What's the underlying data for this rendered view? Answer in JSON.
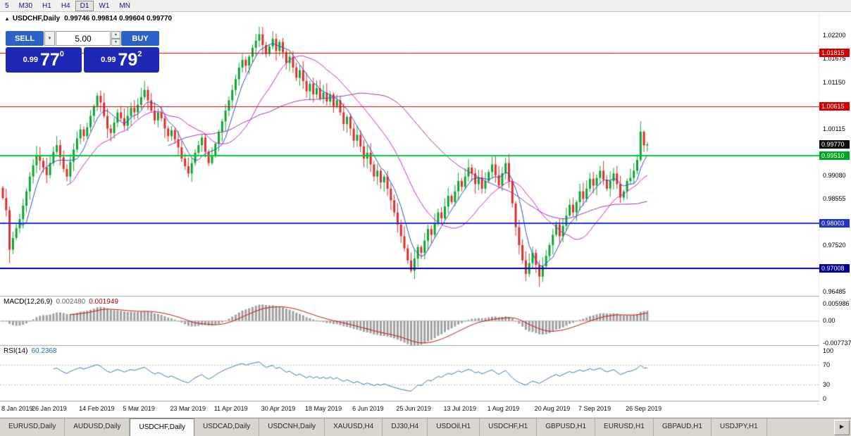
{
  "toolbar": {
    "periods": [
      {
        "label": "5",
        "active": false
      },
      {
        "label": "M30",
        "active": false
      },
      {
        "label": "H1",
        "active": false
      },
      {
        "label": "H4",
        "active": false
      },
      {
        "label": "D1",
        "active": true
      },
      {
        "label": "W1",
        "active": false
      },
      {
        "label": "MN",
        "active": false
      }
    ]
  },
  "chart_header": {
    "icon": "▲",
    "symbol": "USDCHF,Daily",
    "ohlc_text": "0.99746 0.99814 0.99604 0.99770"
  },
  "one_click": {
    "sell_label": "SELL",
    "buy_label": "BUY",
    "volume": "5.00",
    "dropdown_icon": "▼",
    "spinner_up_icon": "▲",
    "spinner_down_icon": "▼",
    "sell_price": {
      "small": "0.99",
      "big": "77",
      "sup": "0"
    },
    "buy_price": {
      "small": "0.99",
      "big": "79",
      "sup": "2"
    }
  },
  "price_axis": {
    "plain_labels": [
      {
        "text": "1.02200",
        "price": 1.022
      },
      {
        "text": "1.01675",
        "price": 1.01675
      },
      {
        "text": "1.01150",
        "price": 1.0115
      },
      {
        "text": "1.00115",
        "price": 1.00115
      },
      {
        "text": "0.99080",
        "price": 0.9908
      },
      {
        "text": "0.98555",
        "price": 0.98555
      },
      {
        "text": "0.97520",
        "price": 0.9752
      },
      {
        "text": "0.96485",
        "price": 0.96485
      }
    ],
    "tags": [
      {
        "text": "1.01815",
        "price": 1.01815,
        "bg": "#d40000"
      },
      {
        "text": "1.00615",
        "price": 1.00615,
        "bg": "#d40000"
      },
      {
        "text": "0.99770",
        "price": 0.9977,
        "bg": "#111111"
      },
      {
        "text": "0.99510",
        "price": 0.9951,
        "bg": "#00a81e"
      },
      {
        "text": "0.98003",
        "price": 0.98003,
        "bg": "#2233cc"
      },
      {
        "text": "0.97008",
        "price": 0.97008,
        "bg": "#0000a0"
      }
    ]
  },
  "macd_panel": {
    "name": "MACD(12,26,9)",
    "main_value": "0.002480",
    "signal_value": "0.001949",
    "axis_labels": [
      {
        "text": "0.005986",
        "value": 0.005986
      },
      {
        "text": "0.00",
        "value": 0
      },
      {
        "text": "-0.007737",
        "value": -0.007737
      }
    ]
  },
  "rsi_panel": {
    "name": "RSI(14)",
    "value": "60.2368",
    "axis_labels": [
      {
        "text": "100",
        "value": 100
      },
      {
        "text": "70",
        "value": 70
      },
      {
        "text": "30",
        "value": 30
      },
      {
        "text": "0",
        "value": 0
      }
    ],
    "level_lines": [
      70,
      30
    ]
  },
  "date_axis": [
    {
      "text": "8 Jan 2019",
      "index": 1
    },
    {
      "text": "26 Jan 2019",
      "index": 14
    },
    {
      "text": "14 Feb 2019",
      "index": 28
    },
    {
      "text": "5 Mar 2019",
      "index": 41
    },
    {
      "text": "23 Mar 2019",
      "index": 55
    },
    {
      "text": "11 Apr 2019",
      "index": 68
    },
    {
      "text": "30 Apr 2019",
      "index": 82
    },
    {
      "text": "18 May 2019",
      "index": 95
    },
    {
      "text": "6 Jun 2019",
      "index": 109
    },
    {
      "text": "25 Jun 2019",
      "index": 122
    },
    {
      "text": "13 Jul 2019",
      "index": 136
    },
    {
      "text": "1 Aug 2019",
      "index": 149
    },
    {
      "text": "20 Aug 2019",
      "index": 163
    },
    {
      "text": "7 Sep 2019",
      "index": 176
    },
    {
      "text": "26 Sep 2019",
      "index": 190
    }
  ],
  "tabs": {
    "items": [
      {
        "label": "EURUSD,Daily"
      },
      {
        "label": "AUDUSD,Daily"
      },
      {
        "label": "USDCHF,Daily"
      },
      {
        "label": "USDCAD,Daily"
      },
      {
        "label": "USDCNH,Daily"
      },
      {
        "label": "XAUUSD,H4"
      },
      {
        "label": "DJ30,H4"
      },
      {
        "label": "USDOil,H1"
      },
      {
        "label": "USDCHF,H1"
      },
      {
        "label": "GBPUSD,H1"
      },
      {
        "label": "EURUSD,H1"
      },
      {
        "label": "GBPAUD,H1"
      },
      {
        "label": "USDJPY,H1"
      }
    ],
    "active_index": 2,
    "scroll_button": "▶"
  },
  "chart_data": {
    "type": "candlestick",
    "symbol": "USDCHF",
    "timeframe": "Daily",
    "current_bar": {
      "open": 0.99746,
      "high": 0.99814,
      "low": 0.99604,
      "close": 0.9977
    },
    "bid": 0.9977,
    "ask": 0.99792,
    "visible_price_range": [
      0.96485,
      1.022
    ],
    "levels": [
      {
        "price": 1.01815,
        "color": "#d40000",
        "width": 1
      },
      {
        "price": 1.00615,
        "color": "#d40000",
        "width": 1
      },
      {
        "price": 0.9951,
        "color": "#00c832",
        "width": 2
      },
      {
        "price": 0.98003,
        "color": "#2233cc",
        "width": 2
      },
      {
        "price": 0.97008,
        "color": "#0000a0",
        "width": 2
      }
    ],
    "first_open": 0.988,
    "closes": [
      0.9857,
      0.983,
      0.9742,
      0.9768,
      0.979,
      0.981,
      0.984,
      0.9872,
      0.9905,
      0.993,
      0.9952,
      0.994,
      0.9925,
      0.9908,
      0.9935,
      0.996,
      0.9975,
      0.9948,
      0.9922,
      0.9905,
      0.9938,
      0.9965,
      0.999,
      1.001,
      0.9995,
      1.0015,
      1.004,
      1.0062,
      1.0085,
      1.007,
      1.004,
      1.0012,
      1.0002,
      1.0025,
      1.0048,
      1.0035,
      1.0018,
      1.004,
      1.0058,
      1.0048,
      1.0065,
      1.0082,
      1.0098,
      1.0075,
      1.0052,
      1.003,
      1.0048,
      1.0035,
      1.0012,
      0.9995,
      1.0008,
      0.9988,
      0.997,
      0.9945,
      0.9928,
      0.9912,
      0.9935,
      0.9958,
      0.9975,
      0.9992,
      0.996,
      0.9935,
      0.9952,
      0.9978,
      1.0005,
      1.0028,
      1.0052,
      1.0075,
      1.0098,
      1.0122,
      1.0148,
      1.0165,
      1.0152,
      1.0172,
      1.0192,
      1.0208,
      1.0222,
      1.0198,
      1.0178,
      1.0195,
      1.0212,
      1.0185,
      1.0205,
      1.0182,
      1.0158,
      1.0172,
      1.0148,
      1.0125,
      1.0142,
      1.0118,
      1.0095,
      1.0112,
      1.0088,
      1.0102,
      1.0078,
      1.0092,
      1.0072,
      1.0088,
      1.0062,
      1.0075,
      1.0048,
      1.0022,
      1.0038,
      1.0012,
      0.9985,
      0.9998,
      0.9972,
      0.9945,
      0.9958,
      0.9932,
      0.9905,
      0.9918,
      0.9892,
      0.9905,
      0.9878,
      0.9852,
      0.9825,
      0.9798,
      0.9772,
      0.9745,
      0.9718,
      0.9695,
      0.9722,
      0.9748,
      0.9735,
      0.9762,
      0.9788,
      0.9775,
      0.9802,
      0.9825,
      0.9812,
      0.9838,
      0.9862,
      0.9848,
      0.9872,
      0.9895,
      0.9882,
      0.9905,
      0.9925,
      0.9912,
      0.9888,
      0.9902,
      0.9878,
      0.9895,
      0.9915,
      0.9932,
      0.9908,
      0.9885,
      0.9912,
      0.9935,
      0.9895,
      0.9845,
      0.9792,
      0.9752,
      0.9718,
      0.9688,
      0.9712,
      0.9735,
      0.9708,
      0.9682,
      0.9705,
      0.9728,
      0.9752,
      0.9775,
      0.9798,
      0.9772,
      0.9795,
      0.9818,
      0.9842,
      0.9825,
      0.9848,
      0.9872,
      0.9855,
      0.9878,
      0.99,
      0.9885,
      0.9902,
      0.9918,
      0.9898,
      0.9878,
      0.9895,
      0.9912,
      0.9888,
      0.9858,
      0.9872,
      0.9895,
      0.9902,
      0.9918,
      0.9942,
      1.0005,
      0.99746,
      0.9977
    ],
    "wick_overrides": {
      "2": {
        "high": 0.9838,
        "low": 0.9712
      },
      "42": {
        "high": 1.0118
      },
      "76": {
        "high": 1.0239
      },
      "80": {
        "high": 1.0229
      },
      "121": {
        "low": 0.969
      },
      "155": {
        "low": 0.9672
      },
      "159": {
        "low": 0.9659
      },
      "189": {
        "high": 1.0028,
        "low": 0.9938
      },
      "190": {
        "high": 1.0008,
        "low": 0.996
      },
      "191": {
        "high": 0.99814,
        "low": 0.99604
      }
    },
    "moving_averages": [
      {
        "type": "SMA",
        "period": 6,
        "color": "#3050c0"
      },
      {
        "type": "SMA",
        "period": 20,
        "color": "#d820d8"
      },
      {
        "type": "SMA",
        "period": 50,
        "color": "#9838b8"
      }
    ],
    "candle_colors": {
      "up": "#0da432",
      "down": "#d92f2f"
    },
    "macd": {
      "fast": 12,
      "slow": 26,
      "signal": 9,
      "current_main": 0.00248,
      "current_signal": 0.001949
    },
    "rsi": {
      "period": 14,
      "current": 60.2368
    }
  }
}
